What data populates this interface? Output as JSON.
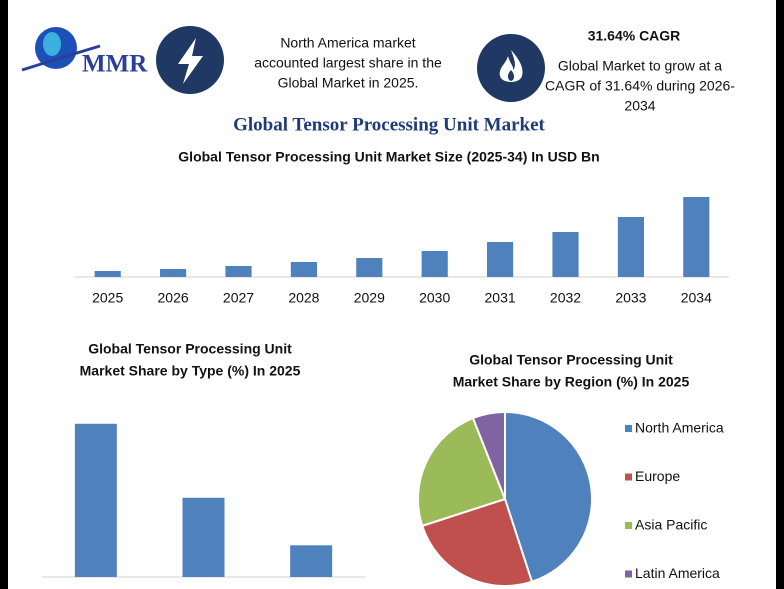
{
  "header": {
    "logo_text": "MMR",
    "left_note": [
      "North America market",
      "accounted largest share in the",
      "Global Market in 2025."
    ],
    "cagr_title": "31.64% CAGR",
    "cagr_note": [
      "Global Market to grow at a",
      "CAGR of 31.64% during 2026-",
      "2034"
    ],
    "title": "Global Tensor Processing Unit Market"
  },
  "chart_data": [
    {
      "type": "bar",
      "title": [
        "Global Tensor Processing Unit Market Size (2025-34) In USD Bn"
      ],
      "categories": [
        "2025",
        "2026",
        "2027",
        "2028",
        "2029",
        "2030",
        "2031",
        "2032",
        "2033",
        "2034"
      ],
      "values": [
        6,
        8,
        11,
        15,
        19,
        26,
        35,
        45,
        60,
        80
      ],
      "color": "#4f81bd",
      "ylim": [
        0,
        87
      ]
    },
    {
      "type": "bar",
      "title": [
        "Global Tensor Processing Unit",
        "Market Share by Type (%) In 2025"
      ],
      "categories": [
        null,
        null,
        null
      ],
      "values": [
        58,
        30,
        12
      ],
      "color": "#4f81bd",
      "ylim": [
        0,
        67
      ]
    },
    {
      "type": "pie",
      "title": [
        "Global Tensor Processing Unit",
        "Market Share by Region  (%) In 2025"
      ],
      "categories": [
        "North America",
        "Europe",
        "Asia Pacific",
        "Latin America"
      ],
      "values": [
        45,
        25,
        24,
        6
      ],
      "colors": [
        "#4f81bd",
        "#c0504d",
        "#9bbb59",
        "#8064a2"
      ],
      "legend": "right"
    }
  ]
}
